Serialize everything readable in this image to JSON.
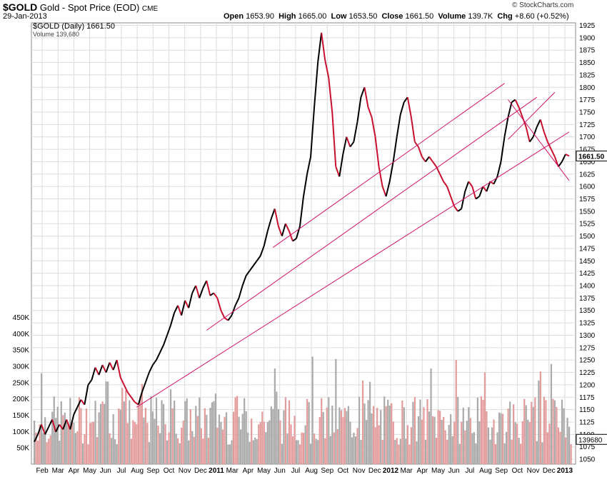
{
  "header": {
    "symbol": "$GOLD",
    "name": "Gold - Spot Price (EOD)",
    "exchange": "CME",
    "date": "29-Jan-2013",
    "brand": "© StockCharts.com",
    "open_label": "Open",
    "open": "1653.90",
    "high_label": "High",
    "high": "1665.00",
    "low_label": "Low",
    "low": "1653.50",
    "close_label": "Close",
    "close": "1661.50",
    "volume_label": "Volume",
    "volume": "139.7K",
    "chg_label": "Chg",
    "chg": "+8.60 (+0.52%)",
    "legend_price": "$GOLD (Daily) 1661.50",
    "legend_volume": "Volume 139,680"
  },
  "colors": {
    "up": "#000000",
    "down": "#c8102e",
    "trendline": "#d0146a",
    "vol_up": "#aaaaaa",
    "vol_down": "#e39b9b",
    "grid": "#dcdcdc"
  },
  "chart_data": {
    "type": "line",
    "title": "Gold - Spot Price (EOD)",
    "price_axis": {
      "ticks": [
        1050,
        1075,
        1100,
        1125,
        1150,
        1175,
        1200,
        1225,
        1250,
        1275,
        1300,
        1325,
        1350,
        1375,
        1400,
        1425,
        1450,
        1475,
        1500,
        1525,
        1550,
        1575,
        1600,
        1625,
        1650,
        1675,
        1700,
        1725,
        1750,
        1775,
        1800,
        1825,
        1850,
        1875,
        1900,
        1925
      ],
      "range": [
        1040,
        1930
      ],
      "current_label": "1661.50"
    },
    "volume_axis": {
      "ticks": [
        "50K",
        "100K",
        "150K",
        "200K",
        "250K",
        "300K",
        "350K",
        "400K",
        "450K"
      ],
      "values": [
        50,
        100,
        150,
        200,
        250,
        300,
        350,
        400,
        450
      ],
      "range": [
        0,
        460
      ],
      "current_label": "139680"
    },
    "x_labels": [
      "Feb",
      "Mar",
      "Apr",
      "May",
      "Jun",
      "Jul",
      "Aug",
      "Sep",
      "Oct",
      "Nov",
      "Dec",
      "2011",
      "Mar",
      "Apr",
      "May",
      "Jun",
      "Jul",
      "Aug",
      "Sep",
      "Oct",
      "Nov",
      "Dec",
      "2012",
      "Mar",
      "Apr",
      "May",
      "Jun",
      "Jul",
      "Aug",
      "Sep",
      "Oct",
      "Nov",
      "Dec",
      "2013"
    ],
    "x_bold": [
      "2011",
      "2012",
      "2013"
    ],
    "series": [
      {
        "points": [
          [
            0,
            1085
          ],
          [
            2,
            1100
          ],
          [
            4,
            1120
          ],
          [
            6,
            1100
          ],
          [
            8,
            1115
          ],
          [
            10,
            1130
          ],
          [
            12,
            1105
          ],
          [
            14,
            1120
          ],
          [
            16,
            1110
          ],
          [
            18,
            1130
          ],
          [
            20,
            1110
          ],
          [
            22,
            1140
          ],
          [
            24,
            1155
          ],
          [
            26,
            1170
          ],
          [
            28,
            1160
          ],
          [
            30,
            1200
          ],
          [
            32,
            1210
          ],
          [
            34,
            1235
          ],
          [
            36,
            1220
          ],
          [
            38,
            1240
          ],
          [
            40,
            1225
          ],
          [
            42,
            1245
          ],
          [
            44,
            1230
          ],
          [
            46,
            1250
          ],
          [
            48,
            1215
          ],
          [
            50,
            1200
          ],
          [
            52,
            1185
          ],
          [
            54,
            1175
          ],
          [
            56,
            1165
          ],
          [
            58,
            1160
          ],
          [
            60,
            1185
          ],
          [
            62,
            1205
          ],
          [
            64,
            1225
          ],
          [
            66,
            1240
          ],
          [
            68,
            1250
          ],
          [
            70,
            1265
          ],
          [
            72,
            1280
          ],
          [
            74,
            1300
          ],
          [
            76,
            1320
          ],
          [
            78,
            1345
          ],
          [
            80,
            1360
          ],
          [
            82,
            1340
          ],
          [
            84,
            1370
          ],
          [
            86,
            1355
          ],
          [
            88,
            1385
          ],
          [
            90,
            1400
          ],
          [
            92,
            1375
          ],
          [
            94,
            1395
          ],
          [
            96,
            1410
          ],
          [
            98,
            1380
          ],
          [
            100,
            1385
          ],
          [
            102,
            1375
          ],
          [
            104,
            1350
          ],
          [
            106,
            1335
          ],
          [
            108,
            1330
          ],
          [
            110,
            1340
          ],
          [
            112,
            1360
          ],
          [
            114,
            1375
          ],
          [
            116,
            1400
          ],
          [
            118,
            1420
          ],
          [
            120,
            1430
          ],
          [
            122,
            1440
          ],
          [
            124,
            1450
          ],
          [
            126,
            1460
          ],
          [
            128,
            1480
          ],
          [
            130,
            1510
          ],
          [
            132,
            1535
          ],
          [
            134,
            1555
          ],
          [
            136,
            1520
          ],
          [
            138,
            1500
          ],
          [
            140,
            1525
          ],
          [
            142,
            1510
          ],
          [
            144,
            1490
          ],
          [
            146,
            1495
          ],
          [
            148,
            1520
          ],
          [
            150,
            1580
          ],
          [
            152,
            1625
          ],
          [
            154,
            1660
          ],
          [
            156,
            1760
          ],
          [
            158,
            1850
          ],
          [
            160,
            1910
          ],
          [
            162,
            1855
          ],
          [
            164,
            1820
          ],
          [
            166,
            1750
          ],
          [
            168,
            1640
          ],
          [
            170,
            1620
          ],
          [
            172,
            1665
          ],
          [
            174,
            1700
          ],
          [
            176,
            1680
          ],
          [
            178,
            1690
          ],
          [
            180,
            1730
          ],
          [
            182,
            1780
          ],
          [
            184,
            1800
          ],
          [
            186,
            1760
          ],
          [
            188,
            1740
          ],
          [
            190,
            1700
          ],
          [
            192,
            1640
          ],
          [
            194,
            1600
          ],
          [
            196,
            1580
          ],
          [
            198,
            1610
          ],
          [
            200,
            1650
          ],
          [
            202,
            1700
          ],
          [
            204,
            1745
          ],
          [
            206,
            1770
          ],
          [
            208,
            1780
          ],
          [
            210,
            1740
          ],
          [
            212,
            1690
          ],
          [
            214,
            1680
          ],
          [
            216,
            1660
          ],
          [
            218,
            1650
          ],
          [
            220,
            1660
          ],
          [
            222,
            1650
          ],
          [
            224,
            1640
          ],
          [
            226,
            1625
          ],
          [
            228,
            1610
          ],
          [
            230,
            1600
          ],
          [
            232,
            1580
          ],
          [
            234,
            1560
          ],
          [
            236,
            1550
          ],
          [
            238,
            1555
          ],
          [
            240,
            1590
          ],
          [
            242,
            1610
          ],
          [
            244,
            1600
          ],
          [
            246,
            1575
          ],
          [
            248,
            1580
          ],
          [
            250,
            1600
          ],
          [
            252,
            1590
          ],
          [
            254,
            1610
          ],
          [
            256,
            1605
          ],
          [
            258,
            1620
          ],
          [
            260,
            1650
          ],
          [
            262,
            1700
          ],
          [
            264,
            1740
          ],
          [
            266,
            1770
          ],
          [
            268,
            1775
          ],
          [
            270,
            1760
          ],
          [
            272,
            1740
          ],
          [
            274,
            1720
          ],
          [
            276,
            1690
          ],
          [
            278,
            1700
          ],
          [
            280,
            1720
          ],
          [
            282,
            1735
          ],
          [
            284,
            1710
          ],
          [
            286,
            1690
          ],
          [
            288,
            1675
          ],
          [
            290,
            1660
          ],
          [
            292,
            1640
          ],
          [
            294,
            1650
          ],
          [
            296,
            1665
          ],
          [
            298,
            1661.5
          ]
        ]
      }
    ],
    "x_extent": 300
  }
}
